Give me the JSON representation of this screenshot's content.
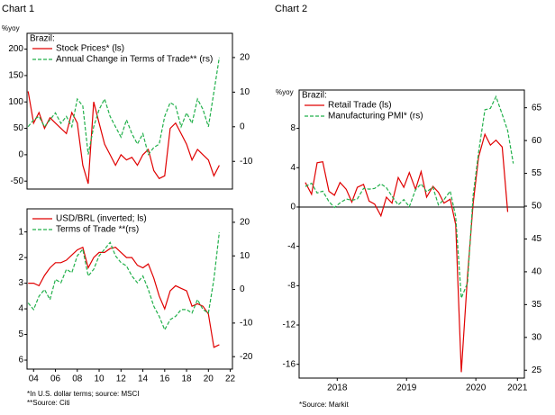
{
  "chart_data": [
    {
      "type": "line",
      "figure_label": "Chart 1",
      "y_label": "%yoy",
      "legend_title": "Brazil:",
      "legend": "upper left",
      "x": [
        2003.5,
        2004,
        2004.5,
        2005,
        2005.5,
        2006,
        2006.5,
        2007,
        2007.5,
        2008,
        2008.5,
        2009,
        2009.5,
        2010,
        2010.5,
        2011,
        2011.5,
        2012,
        2012.5,
        2013,
        2013.5,
        2014,
        2014.5,
        2015,
        2015.5,
        2016,
        2016.5,
        2017,
        2017.5,
        2018,
        2018.5,
        2019,
        2019.5,
        2020,
        2020.5,
        2021
      ],
      "xlim": [
        2003.4,
        2022.2
      ],
      "ylim": [
        -65,
        230
      ],
      "yticks": [
        -50,
        0,
        50,
        100,
        150,
        200
      ],
      "y2lim": [
        -18,
        27
      ],
      "y2ticks": [
        -10,
        0,
        10,
        20
      ],
      "series": [
        {
          "name": "Stock Prices* (ls)",
          "color": "#e00000",
          "style": "solid",
          "values": [
            120,
            60,
            80,
            50,
            70,
            60,
            50,
            40,
            80,
            60,
            -20,
            -55,
            100,
            60,
            20,
            0,
            -20,
            0,
            -10,
            -5,
            -20,
            0,
            10,
            -30,
            -45,
            -40,
            50,
            60,
            40,
            20,
            -10,
            10,
            0,
            -10,
            -40,
            -20
          ]
        },
        {
          "name": "Annual Change in Terms of Trade** (rs)",
          "color": "#22b04b",
          "style": "dashed",
          "axis": "y2",
          "values": [
            0,
            2,
            3,
            0,
            2,
            4,
            1,
            3,
            0,
            8,
            6,
            -8,
            0,
            5,
            8,
            3,
            0,
            -3,
            2,
            -2,
            -5,
            -2,
            -8,
            -6,
            -5,
            3,
            7,
            6,
            0,
            4,
            1,
            8,
            5,
            0,
            10,
            20
          ]
        }
      ]
    },
    {
      "type": "line",
      "legend": "upper left",
      "x": [
        2003.5,
        2004,
        2004.5,
        2005,
        2005.5,
        2006,
        2006.5,
        2007,
        2007.5,
        2008,
        2008.5,
        2009,
        2009.5,
        2010,
        2010.5,
        2011,
        2011.5,
        2012,
        2012.5,
        2013,
        2013.5,
        2014,
        2014.5,
        2015,
        2015.5,
        2016,
        2016.5,
        2017,
        2017.5,
        2018,
        2018.5,
        2019,
        2019.5,
        2020,
        2020.5,
        2021
      ],
      "xlim": [
        2003.4,
        2022.2
      ],
      "xticks": [
        {
          "value": 2004,
          "label": "04"
        },
        {
          "value": 2006,
          "label": "06"
        },
        {
          "value": 2008,
          "label": "08"
        },
        {
          "value": 2010,
          "label": "10"
        },
        {
          "value": 2012,
          "label": "12"
        },
        {
          "value": 2014,
          "label": "14"
        },
        {
          "value": 2016,
          "label": "16"
        },
        {
          "value": 2018,
          "label": "18"
        },
        {
          "value": 2020,
          "label": "20"
        },
        {
          "value": 2022,
          "label": "22"
        }
      ],
      "ylim": [
        6.35,
        0.1
      ],
      "yticks": [
        1,
        2,
        3,
        4,
        5,
        6
      ],
      "y2lim": [
        -23.7,
        24
      ],
      "y2ticks": [
        -20,
        -10,
        0,
        10,
        20
      ],
      "series": [
        {
          "name": "USD/BRL (inverted; ls)",
          "color": "#e00000",
          "style": "solid",
          "values": [
            3.0,
            3.0,
            3.1,
            2.7,
            2.4,
            2.2,
            2.2,
            2.1,
            1.9,
            1.7,
            1.6,
            2.4,
            2.0,
            1.8,
            1.8,
            1.65,
            1.6,
            1.8,
            2.0,
            2.0,
            2.3,
            2.4,
            2.25,
            2.8,
            3.5,
            4.0,
            3.3,
            3.1,
            3.2,
            3.3,
            3.9,
            3.8,
            3.9,
            4.2,
            5.5,
            5.4
          ]
        },
        {
          "name": "Terms of Trade **(rs)",
          "color": "#22b04b",
          "style": "dashed",
          "axis": "y2",
          "values": [
            -4,
            -6,
            -2,
            0,
            -3,
            3,
            2,
            6,
            5,
            10,
            12,
            4,
            6,
            10,
            12,
            14,
            10,
            8,
            7,
            4,
            2,
            4,
            0,
            -5,
            -8,
            -12,
            -9,
            -8,
            -6,
            -6,
            -7,
            -3,
            -6,
            -7,
            3,
            17
          ]
        }
      ],
      "notes": [
        "*In U.S. dollar terms; source: MSCI",
        "**Source: Citi"
      ]
    },
    {
      "type": "line",
      "figure_label": "Chart 2",
      "y_label": "%yoy",
      "legend_title": "Brazil:",
      "legend": "upper left",
      "zero_line": true,
      "x": [
        2018.04,
        2018.13,
        2018.21,
        2018.29,
        2018.38,
        2018.46,
        2018.54,
        2018.63,
        2018.71,
        2018.79,
        2018.88,
        2018.96,
        2019.04,
        2019.13,
        2019.21,
        2019.29,
        2019.38,
        2019.46,
        2019.54,
        2019.63,
        2019.71,
        2019.79,
        2019.88,
        2019.96,
        2020.04,
        2020.13,
        2020.21,
        2020.29,
        2020.38,
        2020.46,
        2020.54,
        2020.63,
        2020.71,
        2020.79,
        2020.88,
        2020.96,
        2021.04
      ],
      "xlim": [
        2017.95,
        2021.2
      ],
      "xticks": [
        {
          "value": 2018.5,
          "label": "2018"
        },
        {
          "value": 2019.5,
          "label": "2019"
        },
        {
          "value": 2020.5,
          "label": "2020"
        },
        {
          "value": 2021.1,
          "label": "2021"
        }
      ],
      "ylim": [
        -17.4,
        11.9
      ],
      "yticks": [
        -16,
        -12,
        -8,
        -4,
        0,
        4,
        8
      ],
      "y2lim": [
        23.8,
        67.7
      ],
      "y2ticks": [
        25,
        30,
        35,
        40,
        45,
        50,
        55,
        60,
        65
      ],
      "series": [
        {
          "name": "Retail Trade (ls)",
          "color": "#e00000",
          "style": "solid",
          "values": [
            2.5,
            1.3,
            4.5,
            4.6,
            1.6,
            1.2,
            2.5,
            1.8,
            0.5,
            2.0,
            2.3,
            0.6,
            0.3,
            -0.9,
            1.0,
            0.4,
            3.0,
            2.0,
            3.5,
            1.8,
            3.6,
            1.0,
            2.1,
            1.5,
            0.4,
            0.8,
            -1.8,
            -16.8,
            -7.0,
            0.3,
            5.1,
            7.4,
            6.3,
            6.8,
            6.1,
            -0.5,
            null
          ]
        },
        {
          "name": "Manufacturing PMI* (rs)",
          "color": "#22b04b",
          "style": "dashed",
          "axis": "y2",
          "values": [
            53,
            53.5,
            52,
            52.3,
            50.7,
            49.8,
            50.5,
            51.1,
            50.9,
            51.1,
            52.7,
            52.6,
            52.7,
            53.4,
            52.8,
            51.5,
            50.2,
            51,
            49.9,
            52.5,
            53.4,
            52.2,
            52.9,
            50.2,
            51,
            52.3,
            48.4,
            36,
            38.3,
            51.6,
            58.2,
            64.7,
            64.9,
            66.7,
            64,
            61.5,
            56.5
          ]
        }
      ],
      "notes": [
        "*Source: Markit"
      ]
    }
  ]
}
